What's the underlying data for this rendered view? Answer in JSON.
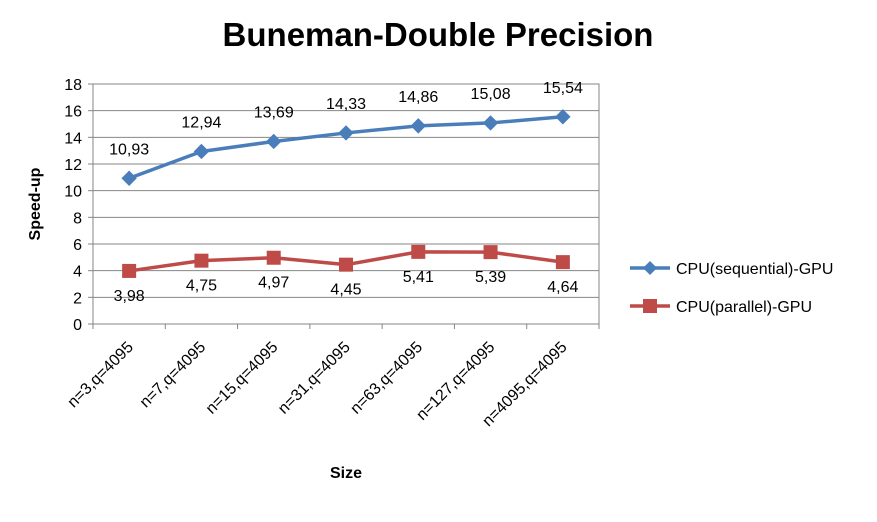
{
  "chart_data": {
    "type": "line",
    "title": "Buneman-Double Precision",
    "xlabel": "Size",
    "ylabel": "Speed-up",
    "ylim": [
      0,
      18
    ],
    "ytick_step": 2,
    "yticks": [
      "0",
      "2",
      "4",
      "6",
      "8",
      "10",
      "12",
      "14",
      "16",
      "18"
    ],
    "grid": true,
    "legend_position": "right",
    "categories": [
      "n=3,q=4095",
      "n=7,q=4095",
      "n=15,q=4095",
      "n=31,q=4095",
      "n=63,q=4095",
      "n=127,q=4095",
      "n=4095,q=4095"
    ],
    "series": [
      {
        "name": "CPU(sequential)-GPU",
        "color": "#4a7ebb",
        "marker": "diamond",
        "values": [
          10.93,
          12.94,
          13.69,
          14.33,
          14.86,
          15.08,
          15.54
        ],
        "labels": [
          "10,93",
          "12,94",
          "13,69",
          "14,33",
          "14,86",
          "15,08",
          "15,54"
        ]
      },
      {
        "name": "CPU(parallel)-GPU",
        "color": "#be4b48",
        "marker": "square",
        "values": [
          3.98,
          4.75,
          4.97,
          4.45,
          5.41,
          5.39,
          4.64
        ],
        "labels": [
          "3,98",
          "4,75",
          "4,97",
          "4,45",
          "5,41",
          "5,39",
          "4,64"
        ]
      }
    ]
  }
}
